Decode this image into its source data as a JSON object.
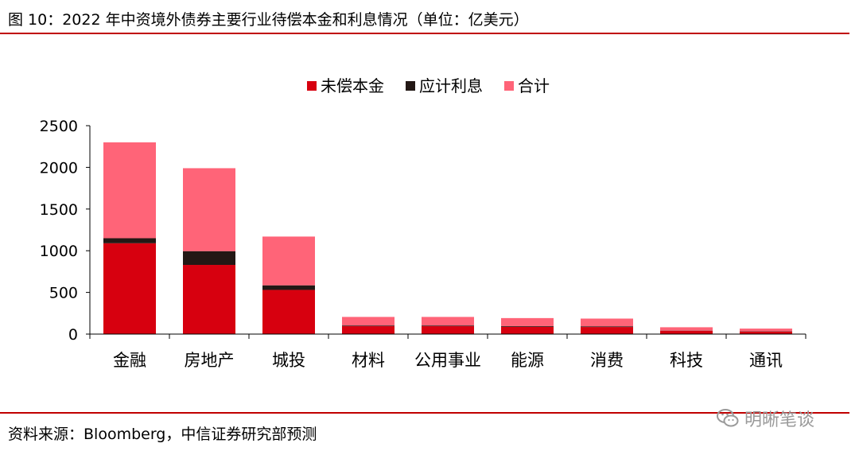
{
  "figure": {
    "title": "图 10：2022 年中资境外债券主要行业待偿本金和利息情况（单位：亿美元）",
    "source": "资料来源：Bloomberg，中信证券研究部预测",
    "watermark": "明晰笔谈",
    "watermark_icon": "wechat-icon"
  },
  "colors": {
    "rule": "#c00000",
    "principal": "#d7000f",
    "interest": "#231815",
    "total": "#ff6478",
    "axis": "#000000"
  },
  "chart_data": {
    "type": "bar",
    "stacked": true,
    "categories": [
      "金融",
      "房地产",
      "城投",
      "材料",
      "公用事业",
      "能源",
      "消费",
      "科技",
      "通讯"
    ],
    "series": [
      {
        "name": "未偿本金",
        "values": [
          1090,
          830,
          530,
          95,
          95,
          88,
          85,
          38,
          30
        ]
      },
      {
        "name": "应计利息",
        "values": [
          60,
          165,
          55,
          8,
          8,
          8,
          8,
          3,
          3
        ]
      },
      {
        "name": "合计",
        "values": [
          1150,
          995,
          585,
          103,
          103,
          96,
          93,
          41,
          33
        ]
      }
    ],
    "yticks": [
      0,
      500,
      1000,
      1500,
      2000,
      2500
    ],
    "ylim": [
      0,
      2500
    ],
    "legend_position": "top-center",
    "grid": false
  }
}
